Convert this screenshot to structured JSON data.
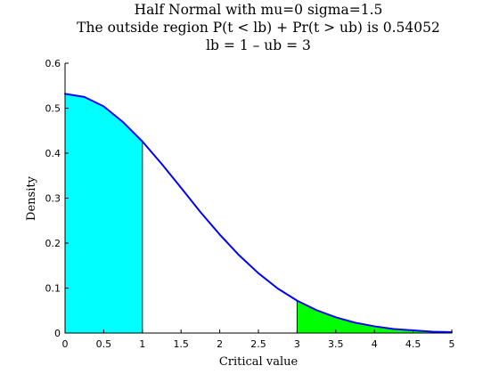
{
  "chart_data": {
    "type": "area",
    "title_lines": [
      "Half Normal with mu=0 sigma=1.5",
      "The outside region P(t < lb) + Pr(t > ub) is 0.54052",
      "lb = 1 – ub = 3"
    ],
    "xlabel": "Critical value",
    "ylabel": "Density",
    "xlim": [
      0,
      5
    ],
    "ylim": [
      0,
      0.6
    ],
    "x_ticks": [
      0,
      0.5,
      1,
      1.5,
      2,
      2.5,
      3,
      3.5,
      4,
      4.5,
      5
    ],
    "y_ticks": [
      0,
      0.1,
      0.2,
      0.3,
      0.4,
      0.5,
      0.6
    ],
    "x_tick_labels": [
      "0",
      "0.5",
      "1",
      "1.5",
      "2",
      "2.5",
      "3",
      "3.5",
      "4",
      "4.5",
      "5"
    ],
    "y_tick_labels": [
      "0",
      "0.1",
      "0.2",
      "0.3",
      "0.4",
      "0.5",
      "0.6"
    ],
    "grid": false,
    "curve": {
      "x": [
        0,
        0.25,
        0.5,
        0.75,
        1,
        1.25,
        1.5,
        1.75,
        2,
        2.25,
        2.5,
        2.75,
        3,
        3.25,
        3.5,
        3.75,
        4,
        4.25,
        4.5,
        4.75,
        5
      ],
      "y": [
        0.532,
        0.525,
        0.504,
        0.469,
        0.426,
        0.376,
        0.323,
        0.269,
        0.219,
        0.173,
        0.133,
        0.099,
        0.072,
        0.051,
        0.035,
        0.023,
        0.015,
        0.009,
        0.006,
        0.003,
        0.002
      ],
      "color": "#0000ff"
    },
    "regions": [
      {
        "from": 0,
        "to": 1,
        "color": "#00ffff"
      },
      {
        "from": 3,
        "to": 5,
        "color": "#00ff00"
      }
    ]
  }
}
